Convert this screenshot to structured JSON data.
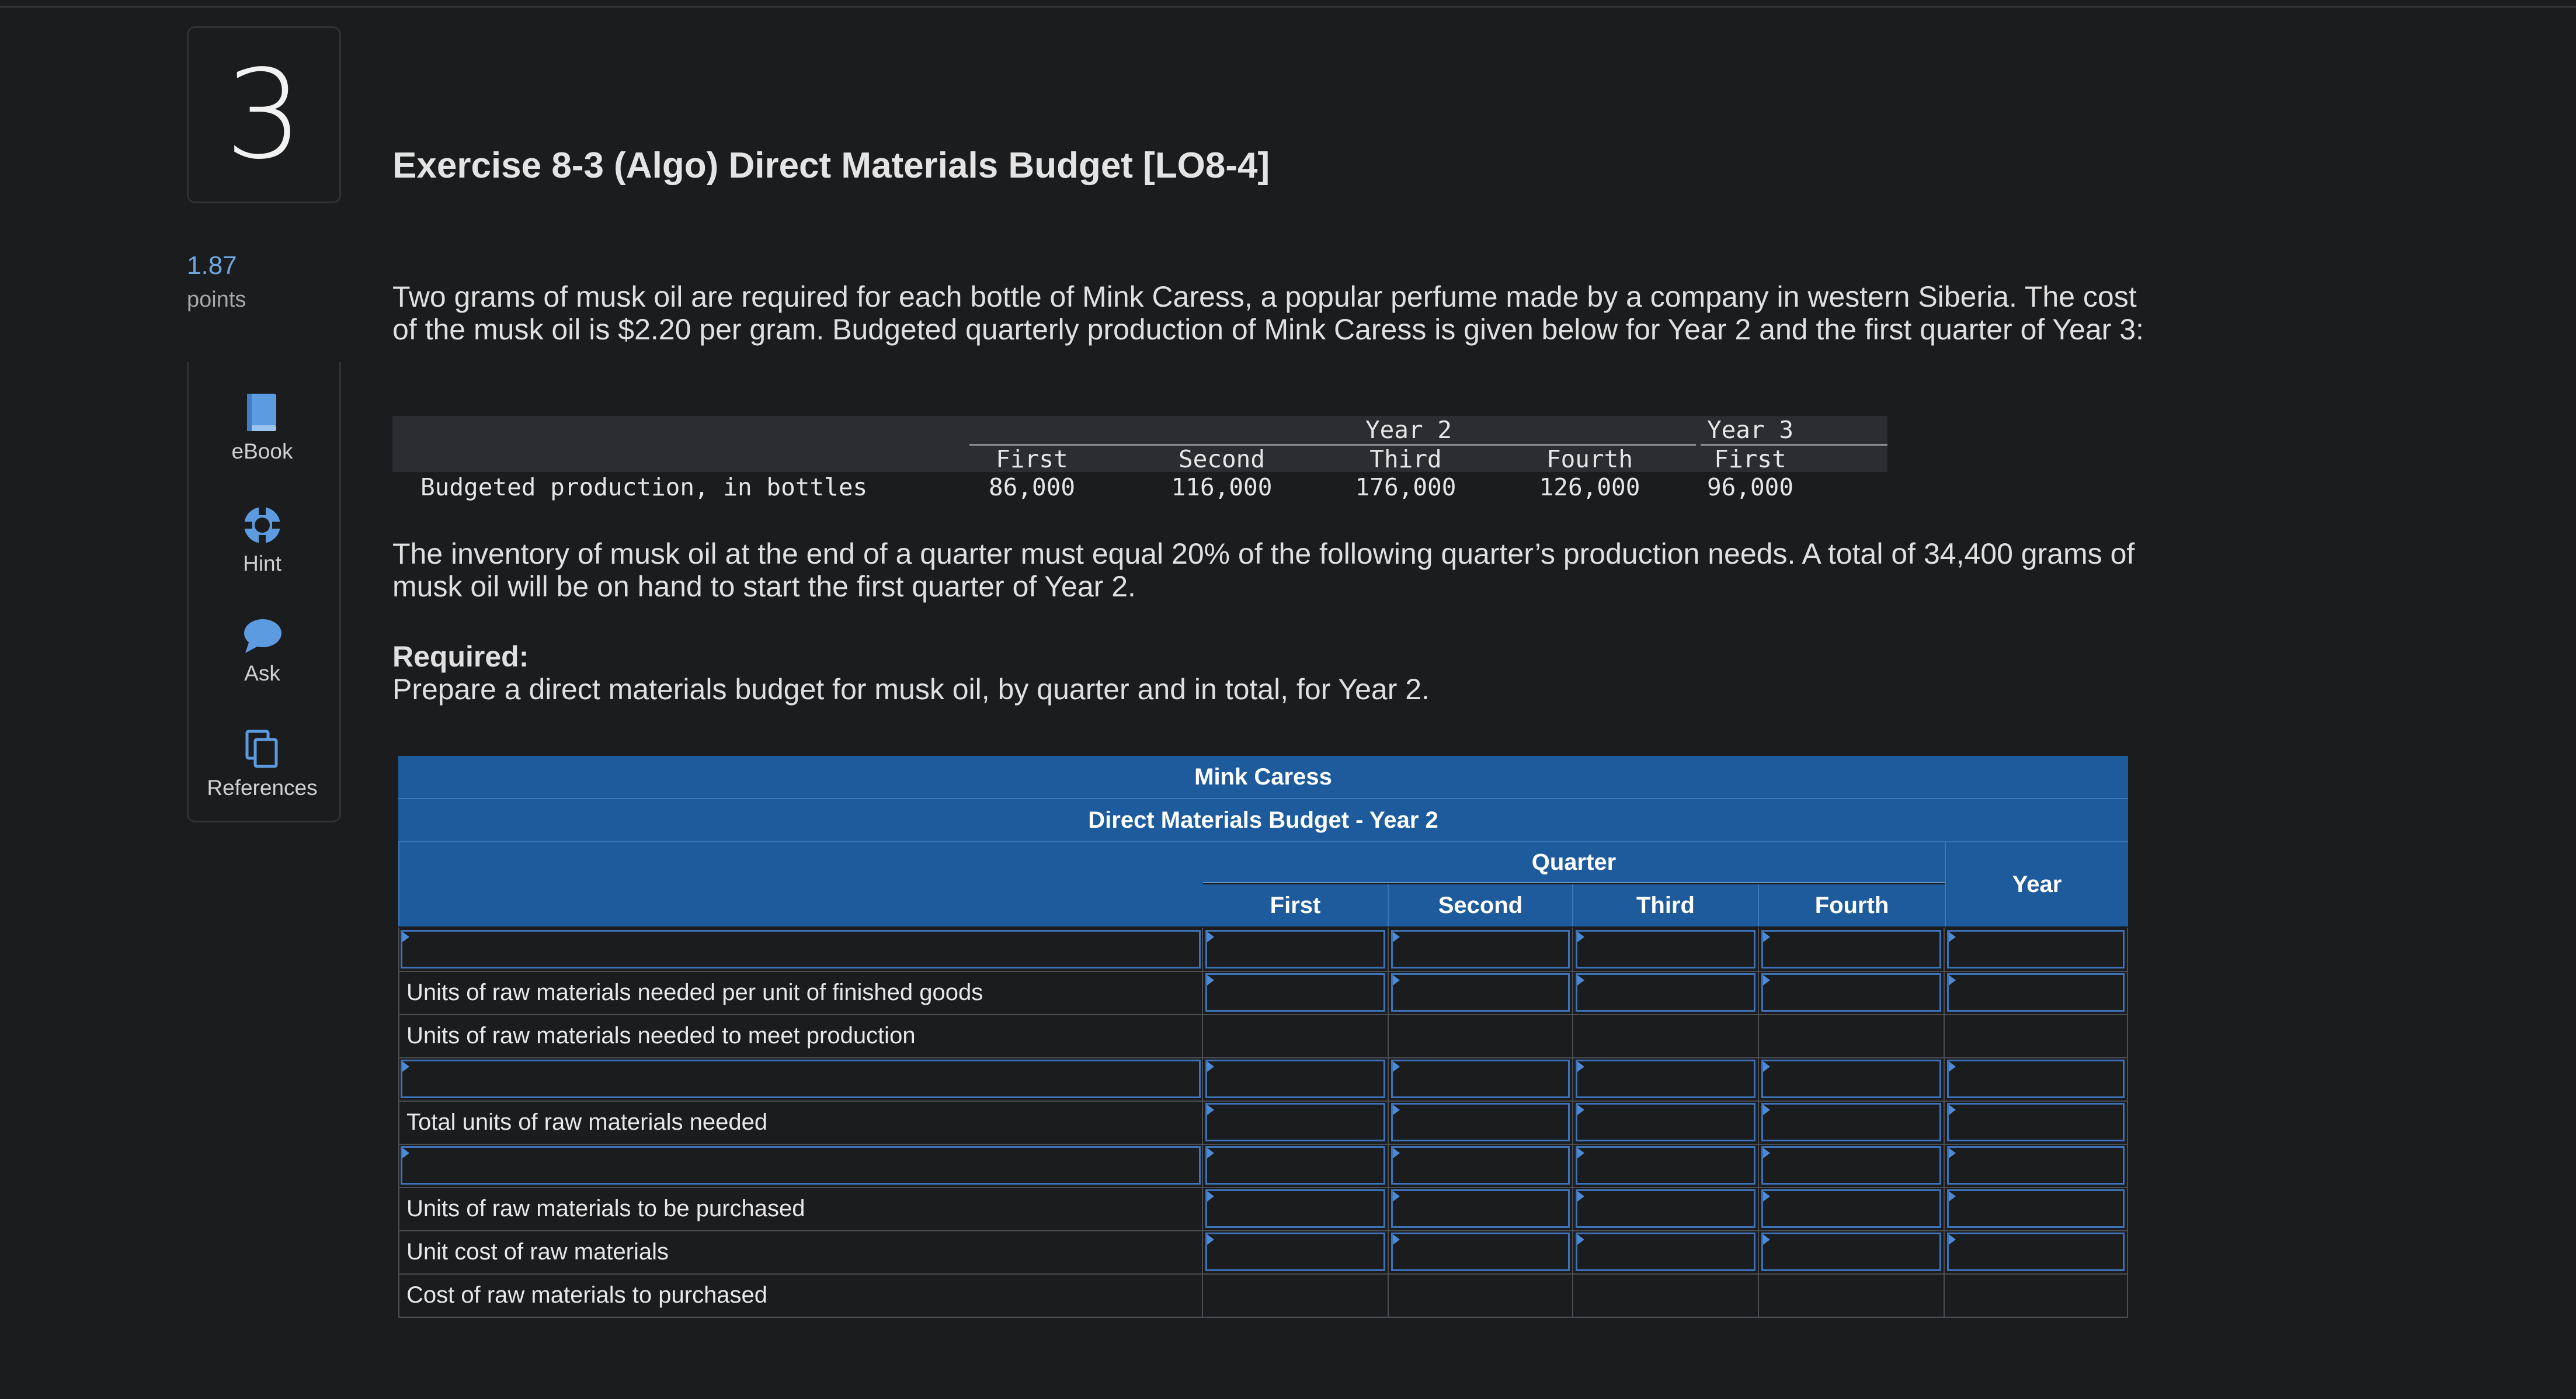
{
  "question": {
    "number": "3",
    "points_value": "1.87",
    "points_label": "points"
  },
  "tools": [
    {
      "label": "eBook",
      "icon": "book-icon"
    },
    {
      "label": "Hint",
      "icon": "lifebuoy-icon"
    },
    {
      "label": "Ask",
      "icon": "chat-bubble-icon"
    },
    {
      "label": "References",
      "icon": "copy-pages-icon"
    }
  ],
  "title": "Exercise 8-3 (Algo) Direct Materials Budget [LO8-4]",
  "intro": "Two grams of musk oil are required for each bottle of Mink Caress, a popular perfume made by a company in western Siberia. The cost of the musk oil is $2.20 per gram. Budgeted quarterly production of Mink Caress is given below for Year 2 and the first quarter of Year 3:",
  "data_table": {
    "year2_label": "Year 2",
    "year3_label": "Year 3",
    "columns": [
      "First",
      "Second",
      "Third",
      "Fourth",
      "First"
    ],
    "row_label": "Budgeted production, in bottles",
    "values": [
      "86,000",
      "116,000",
      "176,000",
      "126,000",
      "96,000"
    ]
  },
  "inventory_text": "The inventory of musk oil at the end of a quarter must equal 20% of the following quarter’s production needs. A total of 34,400 grams of musk oil will be on hand to start the first quarter of Year 2.",
  "required_heading": "Required:",
  "required_text": "Prepare a direct materials budget for musk oil, by quarter and in total, for Year 2.",
  "budget": {
    "company": "Mink Caress",
    "subtitle": "Direct Materials Budget - Year 2",
    "quarter_label": "Quarter",
    "quarters": [
      "First",
      "Second",
      "Third",
      "Fourth"
    ],
    "year_label": "Year",
    "rows": [
      {
        "label": "",
        "label_input": true,
        "cells_input": true
      },
      {
        "label": "Units of raw materials needed per unit of finished goods",
        "label_input": false,
        "cells_input": true
      },
      {
        "label": "Units of raw materials needed to meet production",
        "label_input": false,
        "cells_input": false
      },
      {
        "label": "",
        "label_input": true,
        "cells_input": true
      },
      {
        "label": "Total units of raw materials needed",
        "label_input": false,
        "cells_input": true
      },
      {
        "label": "",
        "label_input": true,
        "cells_input": true
      },
      {
        "label": "Units of raw materials to be purchased",
        "label_input": false,
        "cells_input": true
      },
      {
        "label": "Unit cost of raw materials",
        "label_input": false,
        "cells_input": true
      },
      {
        "label": "Cost of raw materials to purchased",
        "label_input": false,
        "cells_input": false
      }
    ]
  }
}
